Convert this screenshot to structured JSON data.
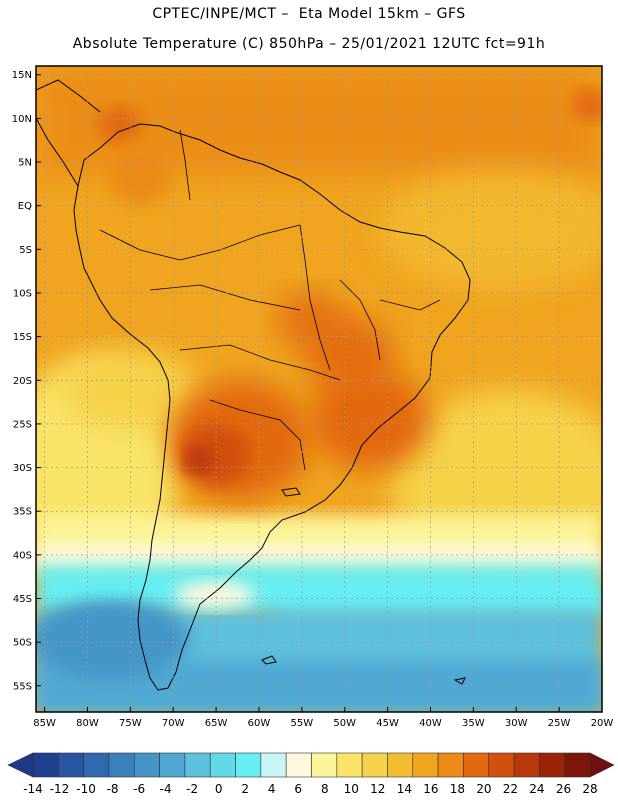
{
  "header": {
    "line1": "CPTEC/INPE/MCT –  Eta Model 15km – GFS",
    "line2": "Absolute Temperature (C) 850hPa – 25/01/2021 12UTC fct=91h"
  },
  "map": {
    "lon_range": [
      -86,
      -20
    ],
    "lat_range": [
      -58,
      16
    ],
    "lat_ticks": [
      "15N",
      "10N",
      "5N",
      "EQ",
      "5S",
      "10S",
      "15S",
      "20S",
      "25S",
      "30S",
      "35S",
      "40S",
      "45S",
      "50S",
      "55S"
    ],
    "lat_values": [
      15,
      10,
      5,
      0,
      -5,
      -10,
      -15,
      -20,
      -25,
      -30,
      -35,
      -40,
      -45,
      -50,
      -55
    ],
    "lon_ticks": [
      "85W",
      "80W",
      "75W",
      "70W",
      "65W",
      "60W",
      "55W",
      "50W",
      "45W",
      "40W",
      "35W",
      "30W",
      "25W",
      "20W"
    ],
    "lon_values": [
      -85,
      -80,
      -75,
      -70,
      -65,
      -60,
      -55,
      -50,
      -45,
      -40,
      -35,
      -30,
      -25,
      -20
    ],
    "gridlines": "dashed"
  },
  "colorbar": {
    "labels": [
      "-14",
      "-12",
      "-10",
      "-8",
      "-6",
      "-4",
      "-2",
      "0",
      "2",
      "4",
      "6",
      "8",
      "10",
      "12",
      "14",
      "16",
      "18",
      "20",
      "22",
      "24",
      "26",
      "28"
    ],
    "colors": [
      "#1f3f8f",
      "#28559f",
      "#2f6aae",
      "#3a80bb",
      "#4596c8",
      "#50a9d3",
      "#5dc0de",
      "#62d8e8",
      "#66eef2",
      "#c8f5f8",
      "#fdf8dc",
      "#fcf49a",
      "#f9e468",
      "#f6d24a",
      "#f3bd31",
      "#f0a41f",
      "#eb8a15",
      "#e2690f",
      "#d1500d",
      "#b8380b",
      "#9a240a",
      "#7c1608"
    ],
    "end_left": "#1e3a86",
    "end_right": "#6e1010"
  }
}
